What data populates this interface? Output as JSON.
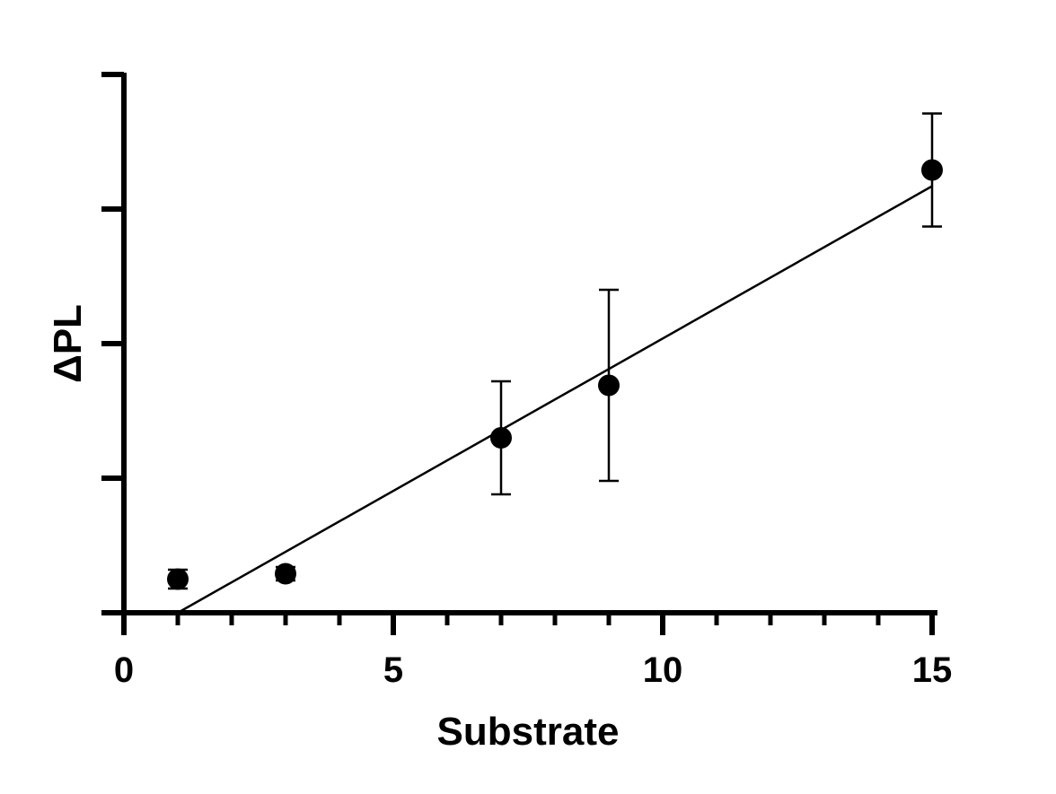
{
  "chart_data": {
    "type": "scatter",
    "title": "",
    "xlabel": "Substrate",
    "ylabel": "ΔPL",
    "xlim": [
      0,
      15
    ],
    "ylim": [
      0,
      4
    ],
    "x_ticks": [
      0,
      5,
      10,
      15
    ],
    "x_tick_labels": [
      "0",
      "5",
      "10",
      "15"
    ],
    "x_minor_ticks": [
      1,
      2,
      3,
      4,
      6,
      7,
      8,
      9,
      11,
      12,
      13,
      14
    ],
    "y_ticks": [
      0,
      1,
      2,
      3,
      4
    ],
    "y_tick_labels_shown": false,
    "grid": false,
    "points": [
      {
        "x": 1,
        "y": 0.25,
        "err": 0.07
      },
      {
        "x": 3,
        "y": 0.29,
        "err": 0.05
      },
      {
        "x": 7,
        "y": 1.3,
        "err": 0.42
      },
      {
        "x": 9,
        "y": 1.69,
        "err": 0.71
      },
      {
        "x": 15,
        "y": 3.29,
        "err": 0.42
      }
    ],
    "fit_line": {
      "x": [
        1,
        15
      ],
      "y": [
        0,
        3.17
      ]
    },
    "color": "#000000"
  }
}
